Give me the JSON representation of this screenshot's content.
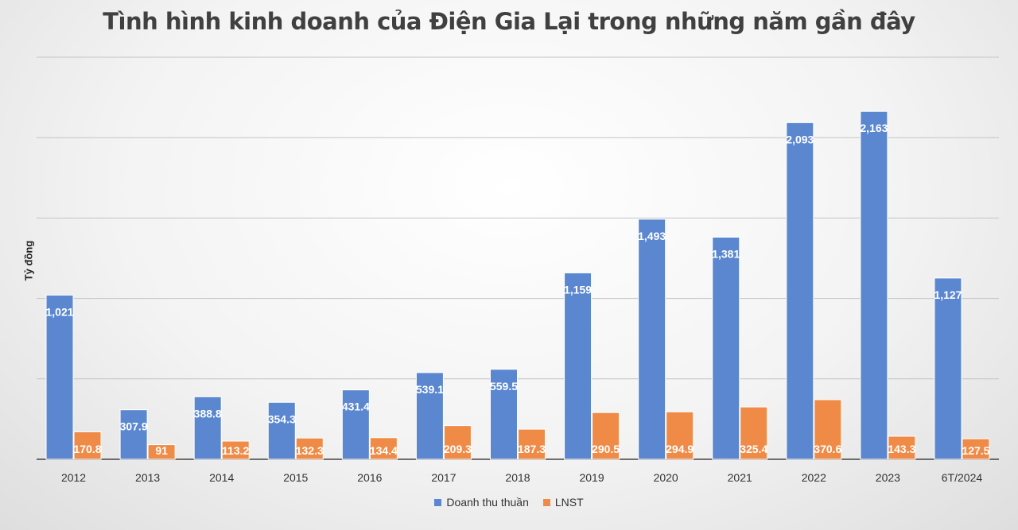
{
  "chart_data": {
    "type": "bar",
    "title": "Tình hình kinh doanh của Điện Gia Lại trong những năm gần đây",
    "xlabel": "",
    "ylabel": "Tỷ đồng",
    "categories": [
      "2012",
      "2013",
      "2014",
      "2015",
      "2016",
      "2017",
      "2018",
      "2019",
      "2020",
      "2021",
      "2022",
      "2023",
      "6T/2024"
    ],
    "series": [
      {
        "name": "Doanh thu thuần",
        "color": "#5b87d0",
        "values": [
          1021,
          307.9,
          388.8,
          354.3,
          431.4,
          539.1,
          559.5,
          1159,
          1493,
          1381,
          2093,
          2163,
          1127
        ],
        "labels": [
          "1,021",
          "307.9",
          "388.8",
          "354.3",
          "431.4",
          "539.1",
          "559.5",
          "1,159",
          "1,493",
          "1,381",
          "2,093",
          "2,163",
          "1,127"
        ]
      },
      {
        "name": "LNST",
        "color": "#ef8b47",
        "values": [
          170.8,
          91,
          113.2,
          132.3,
          134.4,
          209.3,
          187.3,
          290.5,
          294.9,
          325.4,
          370.6,
          143.3,
          127.5
        ],
        "labels": [
          "170.8",
          "91",
          "113.2",
          "132.3",
          "134.4",
          "209.3",
          "187.3",
          "290.5",
          "294.9",
          "325.4",
          "370.6",
          "143.3",
          "127.5"
        ]
      }
    ],
    "ylim": [
      0,
      2500
    ],
    "grid": true,
    "legend": "bottom"
  }
}
